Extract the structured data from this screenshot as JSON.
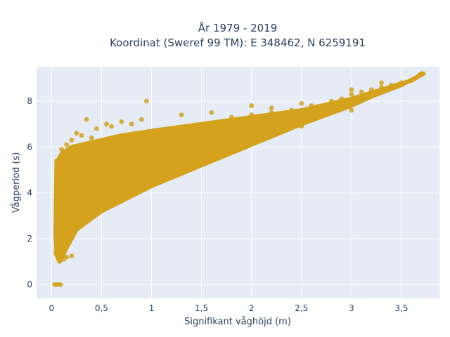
{
  "chart_data": {
    "type": "scatter",
    "title_line1": "År 1979 - 2019",
    "title_line2": "Koordinat (Sweref 99 TM): E 348462, N 6259191",
    "xlabel": "Signifikant våghöjd (m)",
    "ylabel": "Vågperiod (s)",
    "xlim": [
      -0.15,
      3.88
    ],
    "ylim": [
      -0.6,
      9.5
    ],
    "xticks": [
      0,
      0.5,
      1,
      1.5,
      2,
      2.5,
      3,
      3.5
    ],
    "xtick_labels": [
      "0",
      "0,5",
      "1",
      "1,5",
      "2",
      "2,5",
      "3",
      "3,5"
    ],
    "yticks": [
      0,
      2,
      4,
      6,
      8
    ],
    "ytick_labels": [
      "0",
      "2",
      "4",
      "6",
      "8"
    ],
    "grid": true,
    "legend": "none",
    "marker_color": "#D4A21C",
    "plot_background": "#E5ECF6",
    "points": [
      [
        0.03,
        0
      ],
      [
        0.05,
        0
      ],
      [
        0.07,
        0
      ],
      [
        0.09,
        0
      ],
      [
        0.04,
        1.4
      ],
      [
        0.06,
        1.6
      ],
      [
        0.08,
        1.3
      ],
      [
        0.1,
        1.5
      ],
      [
        0.12,
        1.1
      ],
      [
        0.15,
        1.2
      ],
      [
        0.2,
        1.25
      ],
      [
        0.05,
        5.4
      ],
      [
        0.1,
        5.9
      ],
      [
        0.15,
        6.1
      ],
      [
        0.2,
        6.3
      ],
      [
        0.25,
        6.6
      ],
      [
        0.3,
        6.5
      ],
      [
        0.35,
        7.2
      ],
      [
        0.4,
        6.4
      ],
      [
        0.45,
        6.8
      ],
      [
        0.55,
        7.0
      ],
      [
        0.6,
        6.9
      ],
      [
        0.7,
        7.1
      ],
      [
        0.8,
        7.0
      ],
      [
        0.95,
        8.0
      ],
      [
        0.9,
        7.2
      ],
      [
        0.06,
        3.0
      ],
      [
        0.08,
        3.5
      ],
      [
        0.1,
        4.0
      ],
      [
        0.12,
        2.5
      ],
      [
        0.15,
        3.2
      ],
      [
        0.2,
        4.5
      ],
      [
        0.25,
        3.8
      ],
      [
        0.3,
        4.2
      ],
      [
        0.35,
        5.0
      ],
      [
        0.4,
        4.6
      ],
      [
        0.5,
        5.2
      ],
      [
        0.6,
        4.8
      ],
      [
        0.7,
        5.4
      ],
      [
        0.8,
        5.6
      ],
      [
        1.0,
        5.6
      ],
      [
        1.2,
        6.2
      ],
      [
        1.4,
        6.7
      ],
      [
        1.5,
        6.3
      ],
      [
        1.6,
        6.6
      ],
      [
        1.7,
        7.0
      ],
      [
        1.8,
        7.3
      ],
      [
        1.9,
        6.8
      ],
      [
        2.0,
        7.4
      ],
      [
        2.1,
        7.0
      ],
      [
        2.2,
        7.5
      ],
      [
        2.3,
        7.3
      ],
      [
        2.4,
        7.6
      ],
      [
        2.5,
        7.5
      ],
      [
        2.6,
        7.8
      ],
      [
        2.7,
        7.6
      ],
      [
        2.8,
        8.0
      ],
      [
        2.9,
        8.1
      ],
      [
        3.0,
        8.3
      ],
      [
        3.1,
        8.4
      ],
      [
        3.2,
        8.5
      ],
      [
        3.3,
        8.6
      ],
      [
        3.4,
        8.7
      ],
      [
        3.5,
        8.8
      ],
      [
        3.6,
        8.9
      ],
      [
        3.7,
        9.2
      ],
      [
        3.68,
        9.15
      ],
      [
        1.3,
        7.4
      ],
      [
        1.6,
        7.5
      ],
      [
        2.0,
        7.8
      ],
      [
        2.2,
        7.7
      ],
      [
        2.5,
        7.9
      ],
      [
        3.0,
        8.5
      ],
      [
        3.3,
        8.8
      ],
      [
        1.1,
        4.8
      ],
      [
        1.5,
        5.5
      ],
      [
        2.0,
        6.2
      ],
      [
        2.5,
        6.9
      ],
      [
        3.0,
        7.6
      ]
    ]
  }
}
